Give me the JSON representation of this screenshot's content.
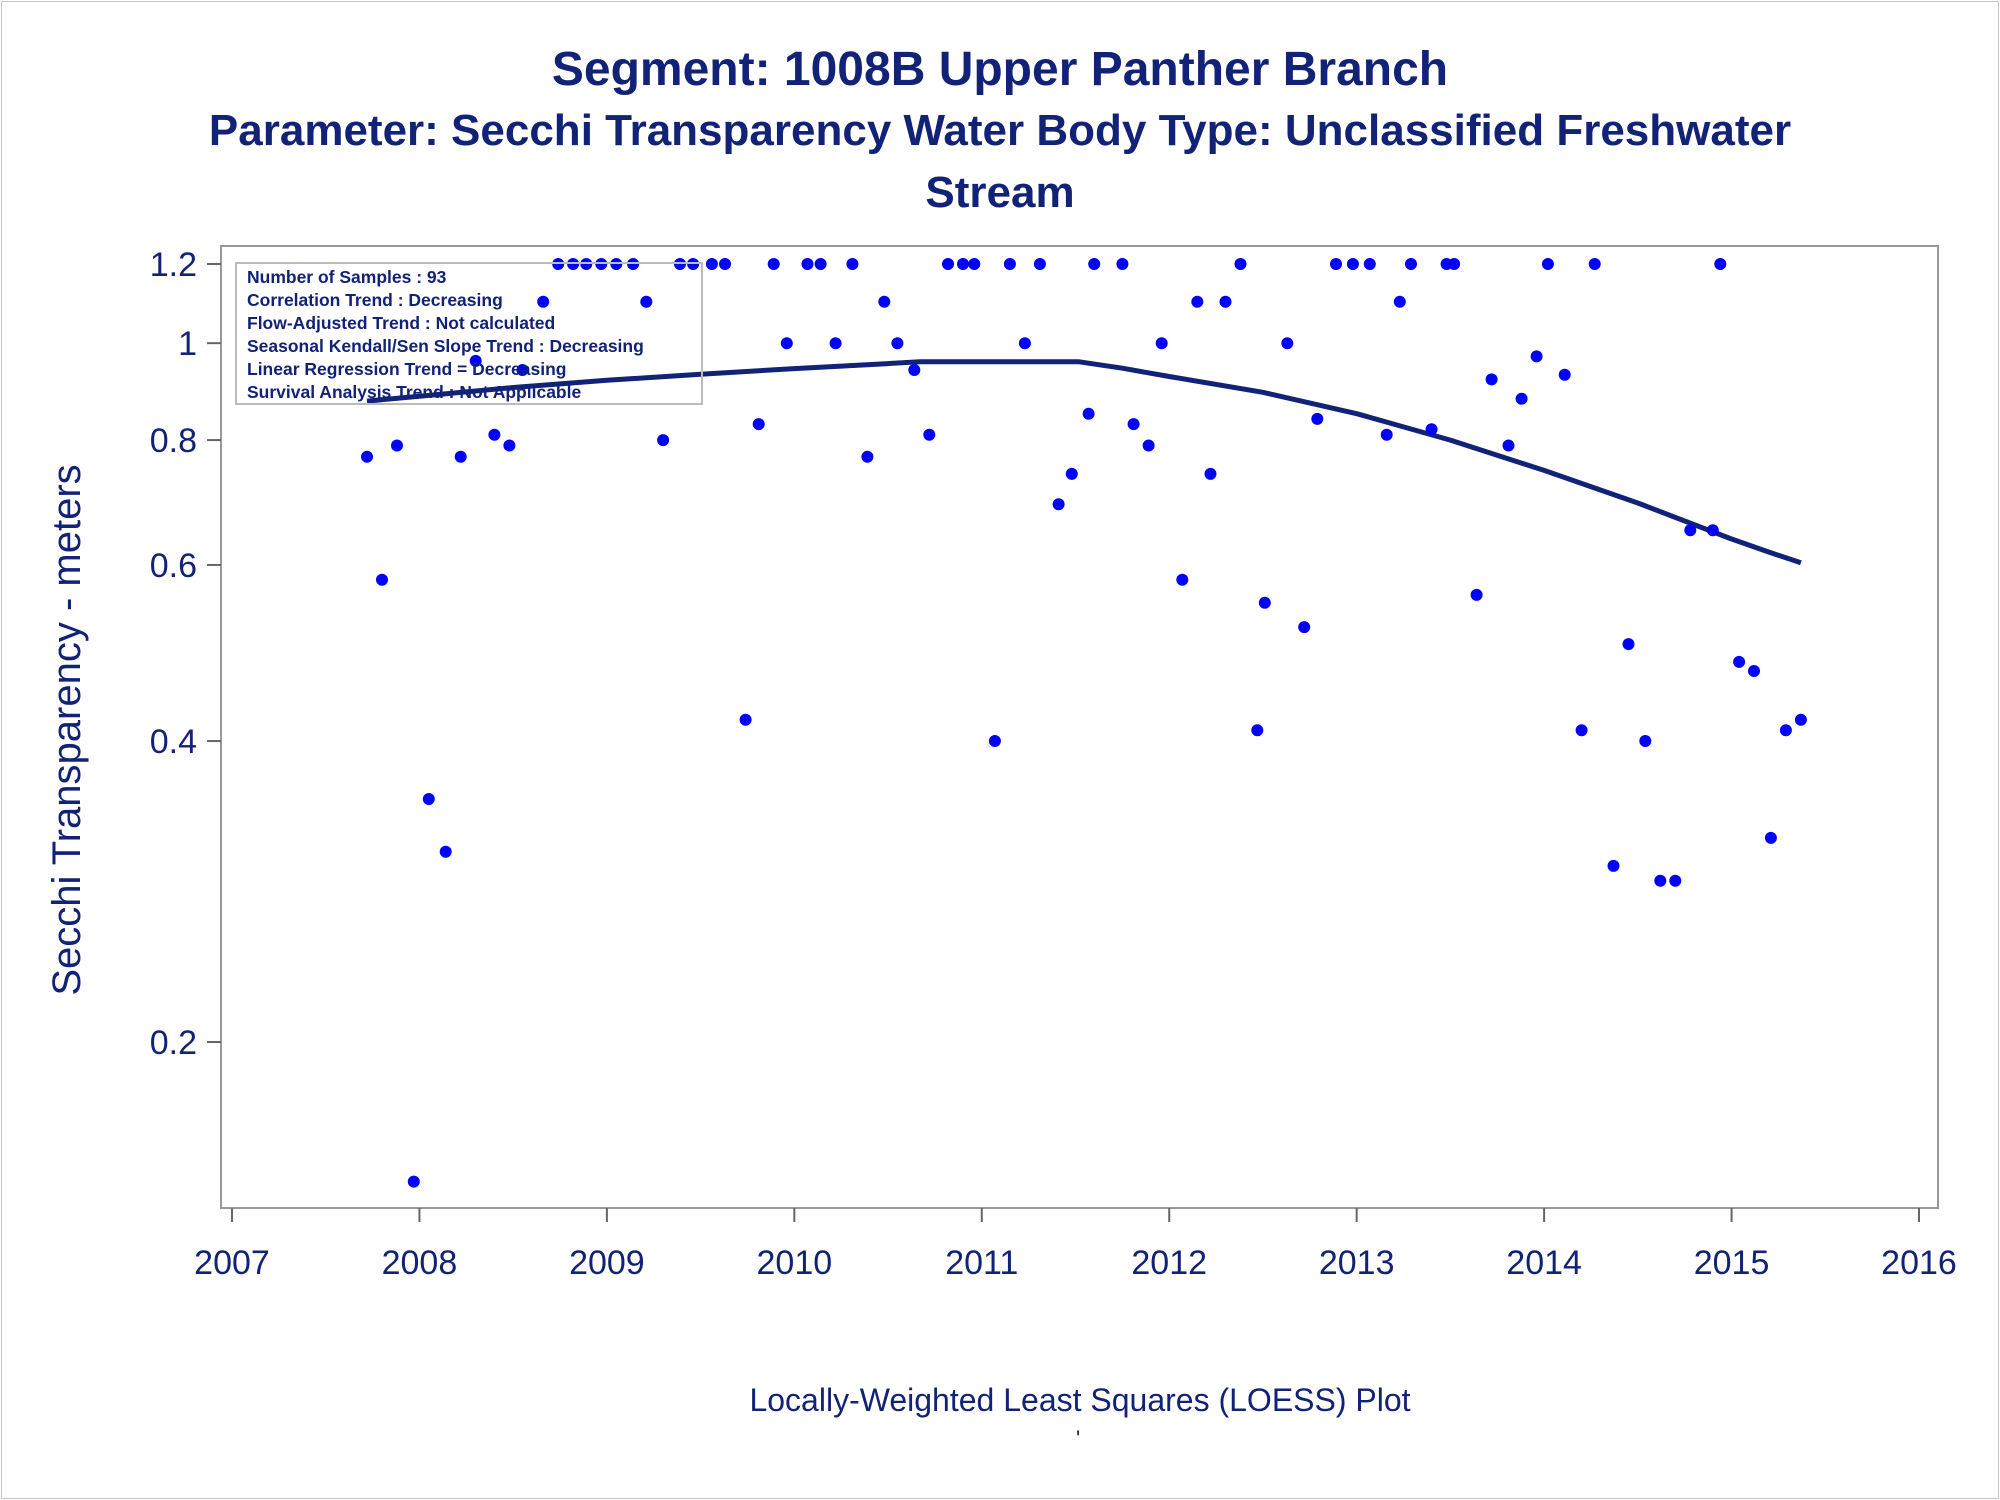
{
  "chart_data": {
    "type": "scatter",
    "title": "Segment: 1008B  Upper Panther Branch",
    "subtitle_line1": "Parameter: Secchi Transparency   Water Body Type: Unclassified Freshwater",
    "subtitle_line2": "Stream",
    "xlabel": "",
    "ylabel": "Secchi Transparency - meters",
    "footnote": "Locally-Weighted Least Squares (LOESS) Plot",
    "footnote_mark": "'",
    "y_scale": "log",
    "xlim": [
      2007,
      2016
    ],
    "ylim": [
      0.14,
      1.25
    ],
    "x_ticks": [
      "2007",
      "2008",
      "2009",
      "2010",
      "2011",
      "2012",
      "2013",
      "2014",
      "2015",
      "2016"
    ],
    "y_ticks": [
      {
        "value": 0.2,
        "label": "0.2"
      },
      {
        "value": 0.4,
        "label": "0.4"
      },
      {
        "value": 0.6,
        "label": "0.6"
      },
      {
        "value": 0.8,
        "label": "0.8"
      },
      {
        "value": 1.0,
        "label": "1"
      },
      {
        "value": 1.2,
        "label": "1.2"
      }
    ],
    "grid": false,
    "point_color": "#0000ff",
    "line_color": "#112277",
    "stats_box": [
      "Number of Samples : 93",
      "Correlation Trend : Decreasing",
      "Flow-Adjusted Trend : Not calculated",
      "Seasonal Kendall/Sen Slope Trend : Decreasing",
      "Linear Regression Trend = Decreasing",
      "Survival Analysis Trend : Not Applicable"
    ],
    "series": [
      {
        "type": "scatter",
        "x": [
          2007.72,
          2007.8,
          2007.88,
          2007.97,
          2008.05,
          2008.14,
          2008.22,
          2008.3,
          2008.4,
          2008.48,
          2008.55,
          2008.66,
          2008.74,
          2008.82,
          2008.89,
          2008.97,
          2009.05,
          2009.14,
          2009.21,
          2009.3,
          2009.39,
          2009.46,
          2009.56,
          2009.63,
          2009.74,
          2009.81,
          2009.89,
          2009.96,
          2010.07,
          2010.14,
          2010.22,
          2010.31,
          2010.39,
          2010.48,
          2010.55,
          2010.64,
          2010.72,
          2010.82,
          2010.9,
          2010.96,
          2011.07,
          2011.15,
          2011.23,
          2011.31,
          2011.41,
          2011.48,
          2011.57,
          2011.6,
          2011.75,
          2011.81,
          2011.89,
          2011.96,
          2012.07,
          2012.15,
          2012.22,
          2012.3,
          2012.38,
          2012.47,
          2012.51,
          2012.63,
          2012.72,
          2012.79,
          2012.89,
          2012.98,
          2013.07,
          2013.16,
          2013.23,
          2013.29,
          2013.4,
          2013.48,
          2013.52,
          2013.64,
          2013.72,
          2013.81,
          2013.88,
          2013.96,
          2014.02,
          2014.11,
          2014.2,
          2014.27,
          2014.37,
          2014.45,
          2014.54,
          2014.62,
          2014.7,
          2014.78,
          2014.9,
          2014.94,
          2015.04,
          2015.12,
          2015.21,
          2015.29,
          2015.37
        ],
        "y": [
          0.77,
          0.58,
          0.79,
          0.145,
          0.35,
          0.31,
          0.77,
          0.96,
          0.81,
          0.79,
          0.94,
          1.1,
          1.2,
          1.2,
          1.2,
          1.2,
          1.2,
          1.2,
          1.1,
          0.8,
          1.2,
          1.2,
          1.2,
          1.2,
          0.42,
          0.83,
          1.2,
          1.0,
          1.2,
          1.2,
          1.0,
          1.2,
          0.77,
          1.1,
          1.0,
          0.94,
          0.81,
          1.2,
          1.2,
          1.2,
          0.4,
          1.2,
          1.0,
          1.2,
          0.69,
          0.74,
          0.85,
          1.2,
          1.2,
          0.83,
          0.79,
          1.0,
          0.58,
          1.1,
          0.74,
          1.1,
          1.2,
          0.41,
          0.55,
          1.0,
          0.52,
          0.84,
          1.2,
          1.2,
          1.2,
          0.81,
          1.1,
          1.2,
          0.82,
          1.2,
          1.2,
          0.56,
          0.92,
          0.79,
          0.88,
          0.97,
          1.2,
          0.93,
          0.41,
          1.2,
          0.3,
          0.5,
          0.4,
          0.29,
          0.29,
          0.65,
          0.65,
          1.2,
          0.48,
          0.47,
          0.32,
          0.41,
          0.42
        ]
      },
      {
        "type": "line",
        "name": "",
        "x": [
          2007.72,
          2008.0,
          2008.5,
          2009.0,
          2009.5,
          2010.0,
          2010.5,
          2010.67,
          2011.0,
          2011.33,
          2011.52,
          2011.75,
          2012.0,
          2012.5,
          2013.0,
          2013.5,
          2014.0,
          2014.5,
          2015.0,
          2015.2,
          2015.37
        ],
        "y": [
          0.875,
          0.885,
          0.903,
          0.918,
          0.931,
          0.943,
          0.954,
          0.958,
          0.958,
          0.958,
          0.958,
          0.944,
          0.926,
          0.893,
          0.85,
          0.8,
          0.746,
          0.692,
          0.637,
          0.618,
          0.603
        ]
      }
    ]
  }
}
